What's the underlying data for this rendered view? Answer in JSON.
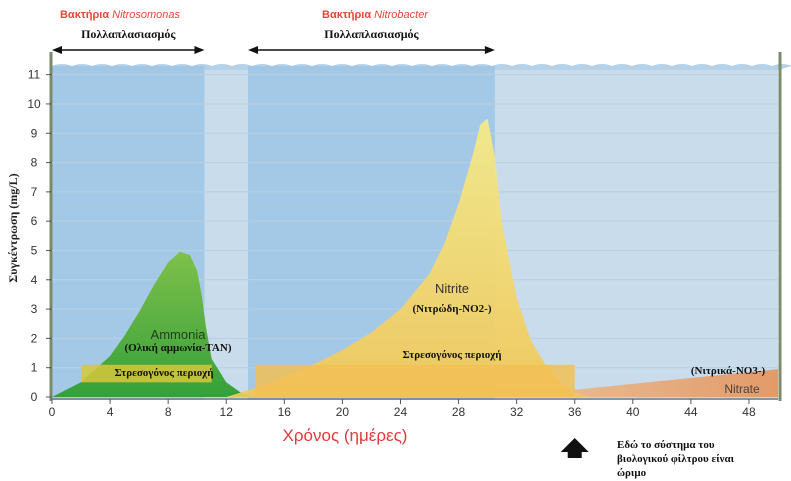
{
  "chart_data": {
    "type": "area",
    "xlabel": "Χρόνος (ημέρες)",
    "ylabel": "Συγκέντρωση (mg/L)",
    "xlim": [
      0,
      50
    ],
    "ylim": [
      0,
      11.5
    ],
    "x_ticks": [
      "0",
      "4",
      "8",
      "12",
      "16",
      "20",
      "24",
      "28",
      "32",
      "36",
      "40",
      "44",
      "48"
    ],
    "y_ticks": [
      "0",
      "1",
      "2",
      "3",
      "4",
      "5",
      "6",
      "7",
      "8",
      "9",
      "10",
      "11"
    ],
    "series": [
      {
        "name": "Ammonia",
        "sublabel": "(Ολική αμμωνία-TAN)",
        "color": "#7cbc3a",
        "x": [
          0,
          2,
          4,
          5,
          6,
          7,
          8,
          8.8,
          9.5,
          10,
          10.3,
          10.6,
          11,
          12,
          13,
          14
        ],
        "y": [
          0,
          0.5,
          1.4,
          2.1,
          2.9,
          3.8,
          4.6,
          4.95,
          4.85,
          4.3,
          3.5,
          2.4,
          1.3,
          0.5,
          0.15,
          0
        ]
      },
      {
        "name": "Nitrite",
        "sublabel": "(Νιτρώδη-NO2-)",
        "color": "#f0e26a",
        "x": [
          12,
          14,
          16,
          18,
          20,
          22,
          24,
          26,
          27,
          28,
          29,
          29.5,
          30,
          30.5,
          31,
          32,
          33,
          34,
          35,
          36,
          37
        ],
        "y": [
          0,
          0.3,
          0.7,
          1.1,
          1.6,
          2.2,
          3.0,
          4.2,
          5.2,
          6.6,
          8.3,
          9.3,
          9.5,
          8.2,
          5.9,
          3.4,
          1.9,
          1.1,
          0.5,
          0.15,
          0
        ]
      },
      {
        "name": "Nitrate",
        "sublabel": "(Νιτρικά-NO3-)",
        "color": "#e9a55e",
        "x": [
          30,
          36,
          42,
          48,
          50
        ],
        "y": [
          0,
          0.25,
          0.55,
          0.85,
          0.95
        ]
      }
    ],
    "stress_zones": [
      {
        "label": "Στρεσογόνος περιοχή",
        "x_range": [
          2,
          11
        ],
        "y_range": [
          0.5,
          1.1
        ]
      },
      {
        "label": "Στρεσογόνος περιοχή",
        "x_range": [
          14,
          36
        ],
        "y_range": [
          0,
          1.1
        ]
      }
    ],
    "bacteria_periods": [
      {
        "title": "Βακτήρια",
        "species": "Nitrosomonas",
        "label": "Πολλαπλασιασμός",
        "x_range": [
          0,
          10.5
        ]
      },
      {
        "title": "Βακτήρια",
        "species": "Nitrobacter",
        "label": "Πολλαπλασιασμός",
        "x_range": [
          13.5,
          30.5
        ]
      }
    ],
    "annotation": {
      "lines": [
        "Εδώ το σύστημα του",
        "βιολογικού φίλτρου είναι",
        "ώριμο"
      ],
      "x": 36
    }
  },
  "colors": {
    "water": "#c8dcec",
    "bacteria_band": "#9ec5e6",
    "bacteria_title": "#e8443a",
    "xlabel": "#e03a3a"
  }
}
